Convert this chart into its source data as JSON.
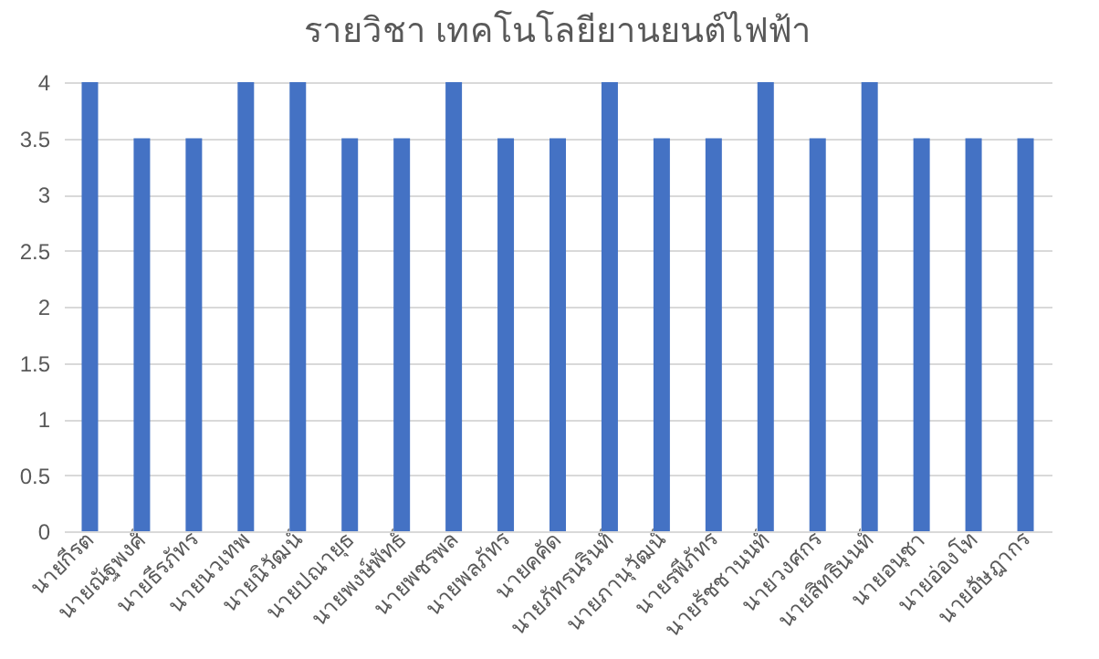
{
  "chart_data": {
    "type": "bar",
    "title": "รายวิชา เทคโนโลยียานยนต์ไฟฟ้า",
    "categories": [
      "นายกีรต",
      "นายณัฐพงศ์",
      "นายธีรภัทร",
      "นายนวเทพ",
      "นายนิวัฒน์",
      "นายปณายุธ",
      "นายพงษ์พัทธ์",
      "นายพชรพล",
      "นายพลภัทร",
      "นายคคัด",
      "นายภัทรนรินท์",
      "นายภานุวัฒน์",
      "นายรพีภัทร",
      "นายรัชชานนท์",
      "นายวงศกร",
      "นายสิทธินนท์",
      "นายอนุชา",
      "นายอ่องโท",
      "นายอัษฎากร"
    ],
    "values": [
      4,
      3.5,
      3.5,
      4,
      4,
      3.5,
      3.5,
      4,
      3.5,
      3.5,
      4,
      3.5,
      3.5,
      4,
      3.5,
      4,
      3.5,
      3.5,
      3.5
    ],
    "color": "#4472c4",
    "ylim": [
      0,
      4
    ],
    "yticks": [
      0,
      0.5,
      1,
      1.5,
      2,
      2.5,
      3,
      3.5,
      4
    ],
    "grid": "y"
  }
}
